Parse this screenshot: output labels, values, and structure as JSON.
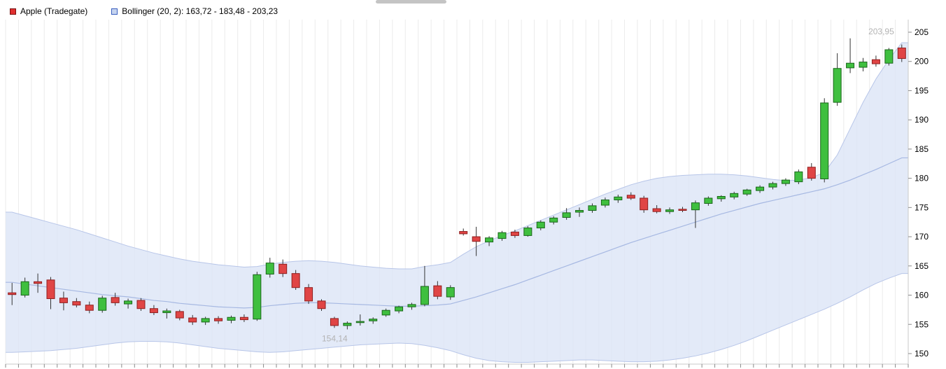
{
  "legend": {
    "apple_label": "Apple (Tradegate)",
    "bollinger_label": "Bollinger (20, 2): 163,72 - 183,48 - 203,23"
  },
  "colors": {
    "up_fill": "#3fbf3f",
    "up_stroke": "#1a661a",
    "down_fill": "#e04545",
    "down_stroke": "#8f1f1f",
    "wick": "#333333",
    "band_fill": "#dce5f6",
    "band_edge": "#b7c5e8",
    "band_mid": "#a6b8e2",
    "grid": "#ebebeb",
    "axis_line": "#c9c9c9",
    "tick": "#8a8a8a",
    "axis_text": "#000000",
    "extreme_label": "#b3b3b3",
    "legend_apple_swatch": "#e03030",
    "legend_apple_swatch_border": "#7a1010",
    "legend_bollinger_swatch": "#c6d4ef",
    "legend_bollinger_swatch_border": "#3a5fbf",
    "scrollbar": "#c4c4c4"
  },
  "chart_data": {
    "type": "candlestick",
    "title": "Apple (Tradegate)",
    "high_label": "203,95",
    "low_label": "154,14",
    "y_axis": {
      "side": "right",
      "ticks": [
        205,
        200,
        195,
        190,
        185,
        180,
        175,
        170,
        165,
        160,
        155,
        150
      ],
      "range_visible": [
        150,
        205
      ]
    },
    "grid": "vertical",
    "legend_position": "top-left",
    "candles": [
      [
        160.4,
        162.1,
        158.3,
        160.1
      ],
      [
        160.0,
        163.0,
        159.6,
        162.3
      ],
      [
        162.3,
        163.7,
        160.4,
        162.0
      ],
      [
        162.6,
        163.1,
        157.6,
        159.4
      ],
      [
        159.5,
        160.6,
        157.4,
        158.7
      ],
      [
        158.9,
        159.5,
        157.9,
        158.3
      ],
      [
        158.3,
        158.9,
        156.9,
        157.4
      ],
      [
        157.4,
        159.9,
        157.0,
        159.5
      ],
      [
        159.6,
        160.4,
        158.2,
        158.7
      ],
      [
        158.5,
        159.4,
        157.7,
        159.0
      ],
      [
        159.1,
        159.5,
        157.3,
        157.7
      ],
      [
        157.7,
        158.3,
        156.6,
        157.0
      ],
      [
        157.0,
        157.7,
        156.0,
        157.3
      ],
      [
        157.2,
        157.5,
        155.7,
        156.1
      ],
      [
        156.1,
        156.6,
        154.9,
        155.4
      ],
      [
        155.4,
        156.3,
        154.9,
        156.0
      ],
      [
        156.0,
        156.4,
        155.1,
        155.6
      ],
      [
        155.7,
        156.5,
        155.2,
        156.2
      ],
      [
        156.2,
        156.7,
        155.4,
        155.8
      ],
      [
        155.9,
        164.0,
        155.6,
        163.5
      ],
      [
        163.6,
        166.4,
        163.0,
        165.5
      ],
      [
        165.3,
        166.1,
        163.1,
        163.7
      ],
      [
        163.7,
        164.3,
        160.9,
        161.3
      ],
      [
        161.3,
        161.9,
        158.5,
        159.0
      ],
      [
        159.0,
        159.3,
        157.3,
        157.7
      ],
      [
        156.0,
        156.3,
        154.4,
        154.8
      ],
      [
        154.8,
        155.5,
        154.14,
        155.2
      ],
      [
        155.3,
        156.7,
        154.8,
        155.5
      ],
      [
        155.6,
        156.2,
        155.1,
        155.9
      ],
      [
        156.6,
        157.7,
        156.3,
        157.4
      ],
      [
        157.3,
        158.2,
        156.9,
        158.0
      ],
      [
        158.0,
        158.7,
        157.5,
        158.4
      ],
      [
        158.4,
        165.0,
        158.1,
        161.5
      ],
      [
        161.6,
        162.4,
        159.3,
        159.8
      ],
      [
        159.7,
        161.7,
        159.2,
        161.3
      ],
      [
        170.9,
        171.4,
        170.2,
        170.5
      ],
      [
        170.0,
        171.7,
        166.7,
        169.2
      ],
      [
        169.1,
        170.1,
        168.4,
        169.8
      ],
      [
        169.7,
        171.0,
        169.3,
        170.7
      ],
      [
        170.8,
        171.2,
        169.8,
        170.2
      ],
      [
        170.2,
        171.8,
        170.0,
        171.5
      ],
      [
        171.5,
        172.8,
        171.1,
        172.5
      ],
      [
        172.5,
        173.5,
        172.1,
        173.2
      ],
      [
        173.3,
        174.9,
        172.9,
        174.1
      ],
      [
        174.2,
        175.0,
        173.4,
        174.5
      ],
      [
        174.5,
        175.7,
        174.1,
        175.3
      ],
      [
        175.4,
        176.7,
        175.0,
        176.3
      ],
      [
        176.3,
        177.2,
        175.8,
        176.8
      ],
      [
        177.1,
        177.6,
        176.3,
        176.6
      ],
      [
        176.6,
        177.0,
        174.1,
        174.6
      ],
      [
        174.8,
        175.4,
        174.0,
        174.3
      ],
      [
        174.3,
        175.0,
        173.9,
        174.6
      ],
      [
        174.7,
        175.1,
        174.2,
        174.5
      ],
      [
        174.6,
        176.2,
        171.5,
        175.8
      ],
      [
        175.7,
        176.9,
        175.3,
        176.6
      ],
      [
        176.5,
        177.1,
        176.0,
        176.9
      ],
      [
        176.8,
        177.7,
        176.4,
        177.4
      ],
      [
        177.3,
        178.2,
        177.0,
        178.0
      ],
      [
        177.9,
        178.8,
        177.5,
        178.5
      ],
      [
        178.5,
        179.4,
        178.1,
        179.1
      ],
      [
        179.1,
        180.0,
        178.7,
        179.7
      ],
      [
        179.4,
        181.5,
        179.0,
        181.1
      ],
      [
        181.9,
        182.6,
        179.6,
        180.0
      ],
      [
        179.9,
        193.7,
        179.3,
        192.9
      ],
      [
        193.0,
        201.4,
        192.4,
        198.8
      ],
      [
        198.9,
        203.95,
        198.0,
        199.7
      ],
      [
        199.0,
        200.6,
        198.3,
        199.9
      ],
      [
        200.3,
        201.0,
        199.1,
        199.6
      ],
      [
        199.7,
        202.3,
        199.3,
        202.0
      ],
      [
        202.3,
        202.9,
        199.9,
        200.5
      ]
    ],
    "bollinger": {
      "period": 20,
      "stddev": 2,
      "latest": {
        "lower": 163.72,
        "middle": 183.48,
        "upper": 203.23
      },
      "upper": [
        174.2,
        173.6,
        173.0,
        172.4,
        171.8,
        171.2,
        170.5,
        169.8,
        169.1,
        168.4,
        167.8,
        167.2,
        166.7,
        166.2,
        165.8,
        165.5,
        165.2,
        165.0,
        164.8,
        164.9,
        165.3,
        165.6,
        165.8,
        165.9,
        165.8,
        165.6,
        165.3,
        165.0,
        164.8,
        164.6,
        164.5,
        164.5,
        164.9,
        165.2,
        165.6,
        167.0,
        168.3,
        169.3,
        170.2,
        171.0,
        171.9,
        172.8,
        173.7,
        174.6,
        175.5,
        176.4,
        177.3,
        178.1,
        178.9,
        179.5,
        180.0,
        180.3,
        180.5,
        180.6,
        180.7,
        180.7,
        180.6,
        180.4,
        180.1,
        179.8,
        179.6,
        179.7,
        180.1,
        181.0,
        184.0,
        188.5,
        193.0,
        197.0,
        200.3,
        203.2
      ],
      "middle": [
        162.2,
        161.9,
        161.6,
        161.3,
        161.0,
        160.7,
        160.4,
        160.1,
        159.9,
        159.7,
        159.4,
        159.1,
        158.9,
        158.6,
        158.4,
        158.2,
        158.0,
        157.9,
        157.8,
        157.9,
        158.2,
        158.4,
        158.6,
        158.7,
        158.7,
        158.6,
        158.5,
        158.4,
        158.3,
        158.2,
        158.1,
        158.1,
        158.2,
        158.3,
        158.5,
        159.1,
        159.7,
        160.4,
        161.1,
        161.8,
        162.6,
        163.4,
        164.2,
        165.0,
        165.8,
        166.6,
        167.4,
        168.2,
        169.0,
        169.7,
        170.4,
        171.1,
        171.8,
        172.5,
        173.2,
        173.9,
        174.5,
        175.1,
        175.7,
        176.2,
        176.7,
        177.2,
        177.7,
        178.2,
        178.9,
        179.7,
        180.6,
        181.5,
        182.5,
        183.5
      ],
      "lower": [
        150.2,
        150.3,
        150.4,
        150.5,
        150.7,
        150.9,
        151.2,
        151.5,
        151.8,
        152.0,
        152.1,
        152.1,
        152.0,
        151.8,
        151.5,
        151.2,
        150.9,
        150.7,
        150.5,
        150.3,
        150.2,
        150.3,
        150.5,
        150.7,
        150.9,
        151.1,
        151.3,
        151.5,
        151.6,
        151.7,
        151.8,
        151.7,
        151.4,
        151.0,
        150.5,
        149.8,
        149.2,
        148.8,
        148.6,
        148.5,
        148.5,
        148.6,
        148.7,
        148.8,
        148.9,
        148.9,
        148.8,
        148.7,
        148.6,
        148.6,
        148.7,
        148.9,
        149.2,
        149.6,
        150.1,
        150.7,
        151.4,
        152.2,
        153.1,
        154.0,
        154.9,
        155.8,
        156.7,
        157.6,
        158.6,
        159.7,
        160.9,
        162.0,
        162.9,
        163.7
      ]
    }
  }
}
